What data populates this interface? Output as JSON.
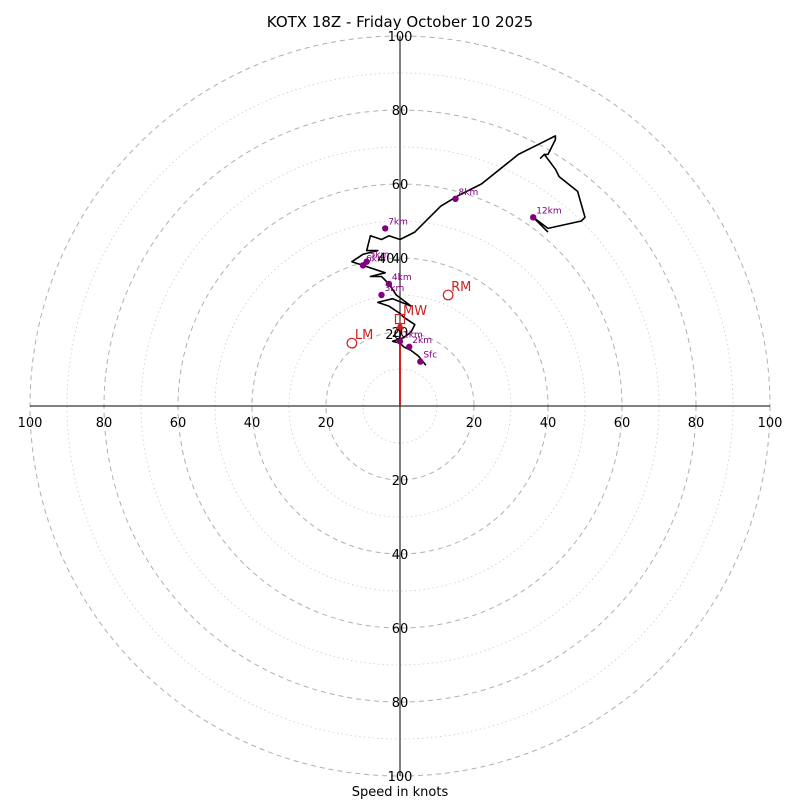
{
  "chart_data": {
    "type": "hodograph",
    "title": "KOTX 18Z - Friday October 10 2025",
    "xlabel": "Speed in knots",
    "ring_step_major": 20,
    "ring_step_minor": 10,
    "max_speed": 100,
    "axis_labels": {
      "left": [
        "100",
        "80",
        "60",
        "40",
        "20"
      ],
      "right": [
        "20",
        "40",
        "60",
        "80",
        "100"
      ],
      "top": [
        "100",
        "80",
        "60",
        "40",
        "20"
      ],
      "bottom": [
        "20",
        "40",
        "60",
        "80",
        "100"
      ]
    },
    "hodograph_line": {
      "color": "#000000",
      "points": [
        [
          7,
          11
        ],
        [
          5,
          13.5
        ],
        [
          3,
          15
        ],
        [
          1,
          16
        ],
        [
          0,
          17
        ],
        [
          -2,
          17.5
        ],
        [
          1,
          18.5
        ],
        [
          3,
          20
        ],
        [
          4,
          22
        ],
        [
          1,
          24
        ],
        [
          0,
          25
        ],
        [
          -3,
          27
        ],
        [
          -6,
          28
        ],
        [
          -2,
          29
        ],
        [
          3,
          27
        ],
        [
          -1,
          30
        ],
        [
          -3,
          33
        ],
        [
          -5,
          35
        ],
        [
          -8,
          35
        ],
        [
          -4,
          36
        ],
        [
          -10,
          38
        ],
        [
          -13,
          39
        ],
        [
          -10,
          41
        ],
        [
          -6,
          42
        ],
        [
          -9,
          42
        ],
        [
          -8,
          46
        ],
        [
          -5,
          45
        ],
        [
          -3,
          46
        ],
        [
          0,
          45
        ],
        [
          4,
          47
        ],
        [
          11,
          54
        ],
        [
          16,
          57
        ],
        [
          22,
          60
        ],
        [
          32,
          68
        ],
        [
          38,
          71
        ],
        [
          42,
          73
        ],
        [
          42,
          72
        ],
        [
          40,
          68
        ],
        [
          39,
          68
        ],
        [
          38,
          67
        ],
        [
          39,
          68
        ],
        [
          42,
          64
        ],
        [
          43,
          62
        ],
        [
          48,
          58
        ],
        [
          50,
          51
        ],
        [
          49,
          50
        ],
        [
          40,
          48
        ],
        [
          36,
          51
        ],
        [
          40,
          47
        ]
      ]
    },
    "height_markers": [
      {
        "label": "Sfc",
        "u": 5.5,
        "v": 12
      },
      {
        "label": "1km",
        "u": 0,
        "v": 17.5
      },
      {
        "label": "2km",
        "u": 2.5,
        "v": 16
      },
      {
        "label": "3km",
        "u": -5,
        "v": 30
      },
      {
        "label": "4km",
        "u": -3,
        "v": 33
      },
      {
        "label": "5km",
        "u": -9,
        "v": 39
      },
      {
        "label": "6km",
        "u": -10,
        "v": 38
      },
      {
        "label": "7km",
        "u": -4,
        "v": 48
      },
      {
        "label": "8km",
        "u": 15,
        "v": 56
      },
      {
        "label": "12km",
        "u": 36,
        "v": 51
      }
    ],
    "storm_motion": [
      {
        "label": "RM",
        "u": 13,
        "v": 30,
        "marker": "circle"
      },
      {
        "label": "LM",
        "u": -13,
        "v": 17,
        "marker": "circle"
      },
      {
        "label": "MW",
        "u": 0,
        "v": 23.5,
        "marker": "square"
      }
    ],
    "mean_wind_vector": {
      "u": 0,
      "v": 23.5
    },
    "overlay_labels": [
      {
        "label": "40",
        "u": -6,
        "v": 40
      },
      {
        "label": "20",
        "u": -4,
        "v": 19.5
      }
    ],
    "colors": {
      "ring": "#b0b0b0",
      "minor_ring": "#cccccc",
      "axis": "#000000",
      "marker": "#800080",
      "storm": "#cc2222",
      "vector": "#cc2222"
    }
  }
}
